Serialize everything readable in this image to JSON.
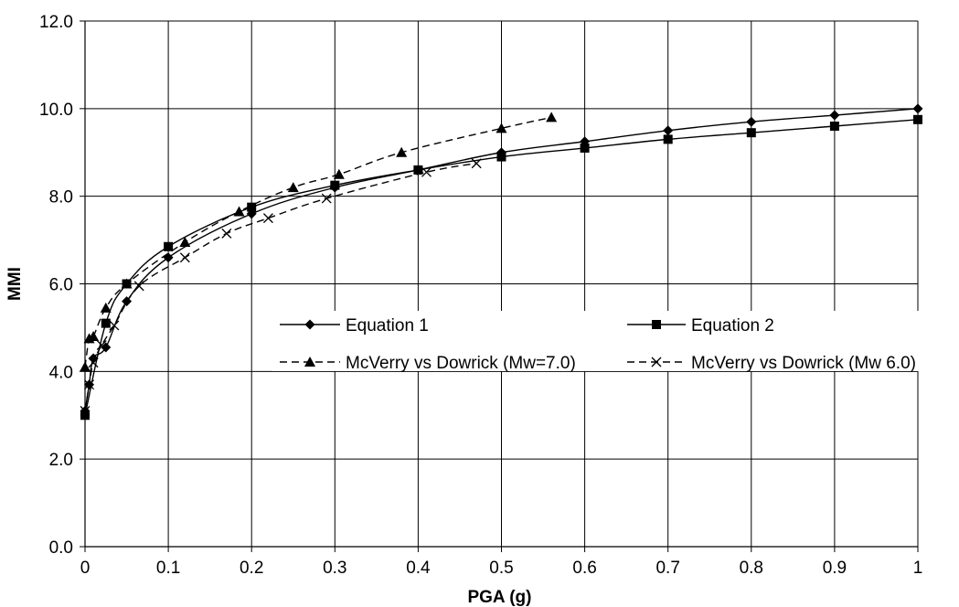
{
  "chart_data": {
    "type": "line",
    "xlabel": "PGA (g)",
    "ylabel": "MMI",
    "xlim": [
      0,
      1
    ],
    "ylim": [
      0,
      12
    ],
    "x_ticks": [
      "0",
      "0.1",
      "0.2",
      "0.3",
      "0.4",
      "0.5",
      "0.6",
      "0.7",
      "0.8",
      "0.9",
      "1"
    ],
    "y_ticks": [
      "0.0",
      "2.0",
      "4.0",
      "6.0",
      "8.0",
      "10.0",
      "12.0"
    ],
    "grid": true,
    "legend_position": "center-right",
    "series": [
      {
        "name": "Equation 1",
        "marker": "diamond",
        "line": "solid",
        "color": "#000000",
        "x": [
          0.0,
          0.005,
          0.01,
          0.025,
          0.05,
          0.1,
          0.2,
          0.3,
          0.4,
          0.5,
          0.6,
          0.7,
          0.8,
          0.9,
          1.0
        ],
        "y": [
          3.1,
          3.7,
          4.3,
          4.55,
          5.6,
          6.6,
          7.6,
          8.2,
          8.6,
          9.0,
          9.25,
          9.5,
          9.7,
          9.85,
          10.0
        ]
      },
      {
        "name": "Equation 2",
        "marker": "square",
        "line": "solid",
        "color": "#000000",
        "x": [
          0.0,
          0.025,
          0.05,
          0.1,
          0.2,
          0.3,
          0.4,
          0.5,
          0.6,
          0.7,
          0.8,
          0.9,
          1.0
        ],
        "y": [
          3.0,
          5.1,
          6.0,
          6.85,
          7.75,
          8.25,
          8.6,
          8.9,
          9.1,
          9.3,
          9.45,
          9.6,
          9.75
        ]
      },
      {
        "name": "McVerry vs Dowrick (Mw=7.0)",
        "marker": "triangle",
        "line": "dashed",
        "color": "#000000",
        "x": [
          0.0,
          0.005,
          0.01,
          0.025,
          0.05,
          0.12,
          0.185,
          0.25,
          0.305,
          0.38,
          0.5,
          0.56
        ],
        "y": [
          4.1,
          4.75,
          4.8,
          5.45,
          6.0,
          6.95,
          7.65,
          8.2,
          8.5,
          9.0,
          9.55,
          9.8
        ]
      },
      {
        "name": "McVerry vs Dowrick (Mw 6.0)",
        "marker": "x",
        "line": "dashed",
        "color": "#000000",
        "x": [
          0.0,
          0.005,
          0.01,
          0.02,
          0.035,
          0.065,
          0.12,
          0.17,
          0.22,
          0.29,
          0.41,
          0.47
        ],
        "y": [
          3.1,
          3.7,
          4.2,
          4.6,
          5.05,
          5.95,
          6.6,
          7.15,
          7.5,
          7.95,
          8.55,
          8.75
        ]
      }
    ]
  }
}
